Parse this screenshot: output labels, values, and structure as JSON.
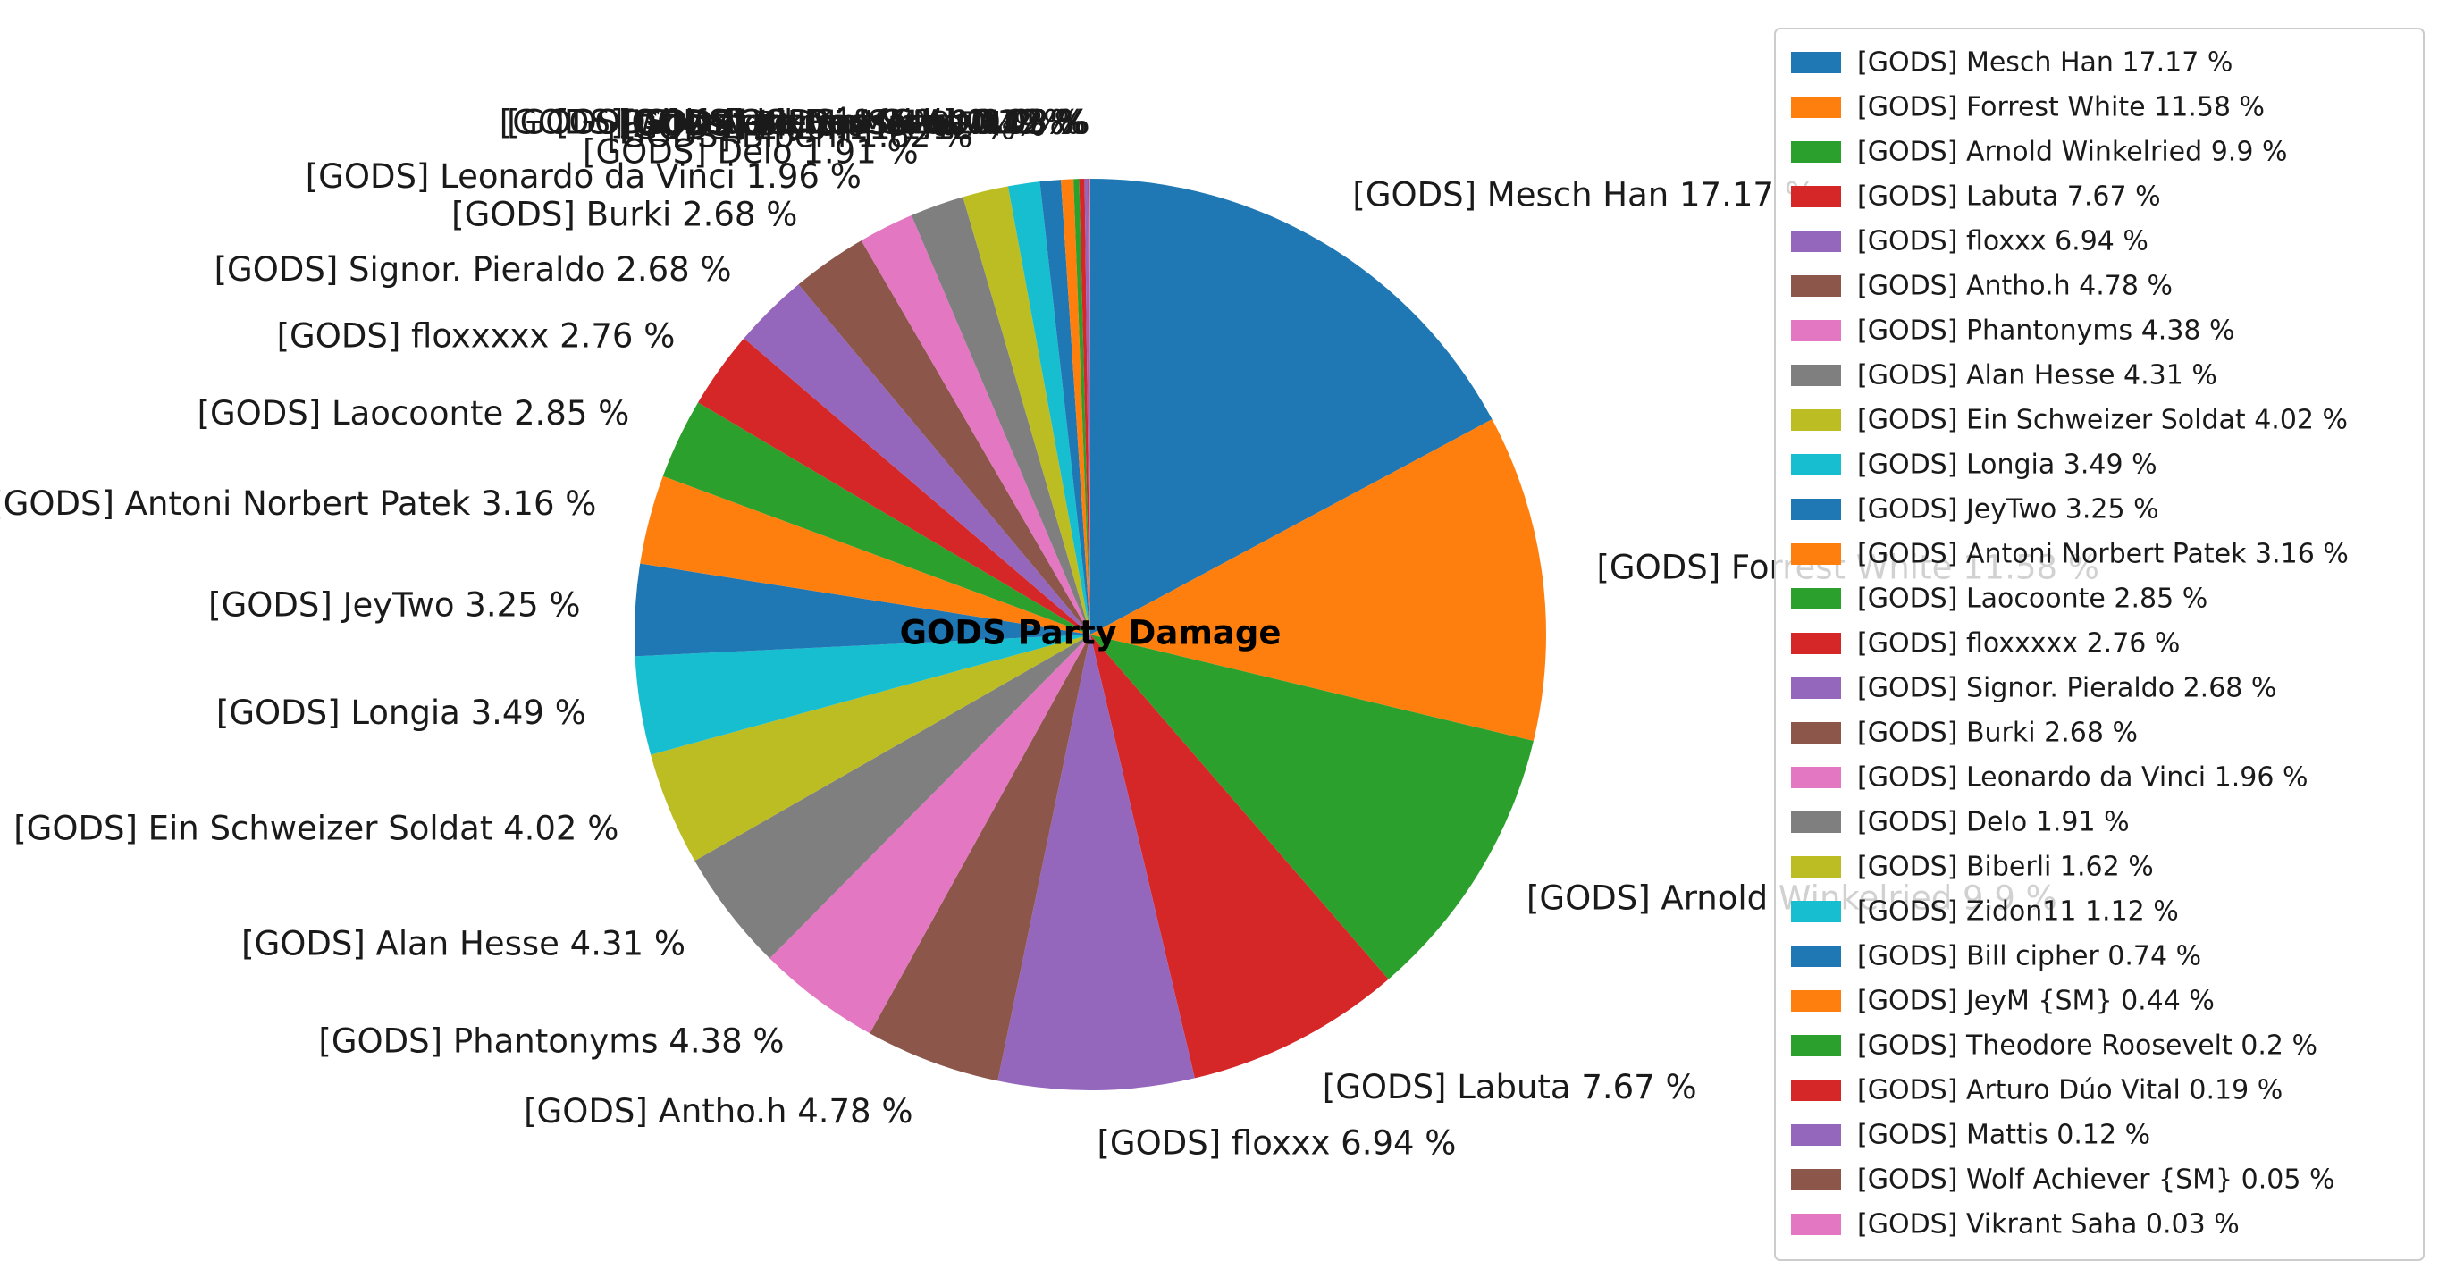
{
  "chart_data": {
    "type": "pie",
    "title": "GODS Party Damage",
    "start_angle_deg": 90,
    "direction": "clockwise",
    "legend_position": "upper-right",
    "slices": [
      {
        "label": "[GODS] Mesch Han 17.17 %",
        "value": 17.17,
        "color": "#1f77b4"
      },
      {
        "label": "[GODS] Forrest White 11.58 %",
        "value": 11.58,
        "color": "#ff7f0e"
      },
      {
        "label": "[GODS] Arnold Winkelried 9.9 %",
        "value": 9.9,
        "color": "#2ca02c"
      },
      {
        "label": "[GODS] Labuta 7.67 %",
        "value": 7.67,
        "color": "#d62728"
      },
      {
        "label": "[GODS] floxxx 6.94 %",
        "value": 6.94,
        "color": "#9467bd"
      },
      {
        "label": "[GODS] Antho.h 4.78 %",
        "value": 4.78,
        "color": "#8c564b"
      },
      {
        "label": "[GODS] Phantonyms 4.38 %",
        "value": 4.38,
        "color": "#e377c2"
      },
      {
        "label": "[GODS] Alan Hesse 4.31 %",
        "value": 4.31,
        "color": "#7f7f7f"
      },
      {
        "label": "[GODS] Ein Schweizer Soldat 4.02 %",
        "value": 4.02,
        "color": "#bcbd22"
      },
      {
        "label": "[GODS] Longia 3.49 %",
        "value": 3.49,
        "color": "#17becf"
      },
      {
        "label": "[GODS] JeyTwo 3.25 %",
        "value": 3.25,
        "color": "#1f77b4"
      },
      {
        "label": "[GODS] Antoni Norbert Patek 3.16 %",
        "value": 3.16,
        "color": "#ff7f0e"
      },
      {
        "label": "[GODS] Laocoonte 2.85 %",
        "value": 2.85,
        "color": "#2ca02c"
      },
      {
        "label": "[GODS] floxxxxx 2.76 %",
        "value": 2.76,
        "color": "#d62728"
      },
      {
        "label": "[GODS] Signor. Pieraldo 2.68 %",
        "value": 2.68,
        "color": "#9467bd"
      },
      {
        "label": "[GODS] Burki 2.68 %",
        "value": 2.68,
        "color": "#8c564b"
      },
      {
        "label": "[GODS] Leonardo da Vinci 1.96 %",
        "value": 1.96,
        "color": "#e377c2"
      },
      {
        "label": "[GODS] Delo 1.91 %",
        "value": 1.91,
        "color": "#7f7f7f"
      },
      {
        "label": "[GODS] Biberli 1.62 %",
        "value": 1.62,
        "color": "#bcbd22"
      },
      {
        "label": "[GODS] Zidon11 1.12 %",
        "value": 1.12,
        "color": "#17becf"
      },
      {
        "label": "[GODS] Bill cipher 0.74 %",
        "value": 0.74,
        "color": "#1f77b4"
      },
      {
        "label": "[GODS] JeyM {SM} 0.44 %",
        "value": 0.44,
        "color": "#ff7f0e"
      },
      {
        "label": "[GODS] Theodore Roosevelt 0.2 %",
        "value": 0.2,
        "color": "#2ca02c"
      },
      {
        "label": "[GODS] Arturo Dúo Vital 0.19 %",
        "value": 0.19,
        "color": "#d62728"
      },
      {
        "label": "[GODS] Mattis 0.12 %",
        "value": 0.12,
        "color": "#9467bd"
      },
      {
        "label": "[GODS] Wolf Achiever {SM} 0.05 %",
        "value": 0.05,
        "color": "#8c564b"
      },
      {
        "label": "[GODS] Vikrant Saha 0.03 %",
        "value": 0.03,
        "color": "#e377c2"
      }
    ]
  }
}
